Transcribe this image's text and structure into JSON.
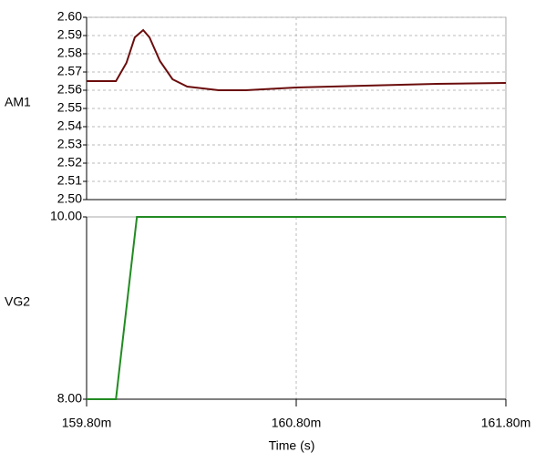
{
  "chart_data": [
    {
      "type": "line",
      "ylabel": "AM1",
      "ylabel_color": "#000000",
      "color": "#6b0c0c",
      "x": [
        0.1598,
        0.15994,
        0.15999,
        0.16003,
        0.16007,
        0.1601,
        0.16015,
        0.16021,
        0.16028,
        0.16043,
        0.16056,
        0.1608,
        0.16113,
        0.16147,
        0.1618
      ],
      "values": [
        2.565,
        2.565,
        2.575,
        2.589,
        2.593,
        2.589,
        2.576,
        2.566,
        2.562,
        2.56,
        2.56,
        2.5615,
        2.5625,
        2.5635,
        2.564
      ],
      "xlim": [
        0.1598,
        0.1618
      ],
      "ylim": [
        2.5,
        2.6
      ],
      "grid": true,
      "yticks": [
        {
          "value": 2.5,
          "label": "2.50"
        },
        2.51,
        2.52,
        2.53,
        2.54,
        2.55,
        2.56,
        2.57,
        2.58,
        2.59,
        {
          "value": 2.6,
          "label": "2.60"
        }
      ]
    },
    {
      "type": "line",
      "ylabel": "VG2",
      "ylabel_color": "#228b22",
      "color": "#228b22",
      "xlabel": "Time (s)",
      "x": [
        0.1598,
        0.15994,
        0.16004,
        0.1618
      ],
      "values": [
        8,
        8,
        10,
        10
      ],
      "xlim": [
        0.1598,
        0.1618
      ],
      "ylim": [
        8,
        10
      ],
      "grid": false,
      "yticks": [
        {
          "value": 8,
          "label": "8.00"
        },
        {
          "value": 10,
          "label": "10.00"
        }
      ],
      "xticks": [
        {
          "value": 0.1598,
          "label": "159.80m"
        },
        {
          "value": 0.1608,
          "label": "160.80m"
        },
        {
          "value": 0.1618,
          "label": "161.80m"
        }
      ]
    }
  ]
}
